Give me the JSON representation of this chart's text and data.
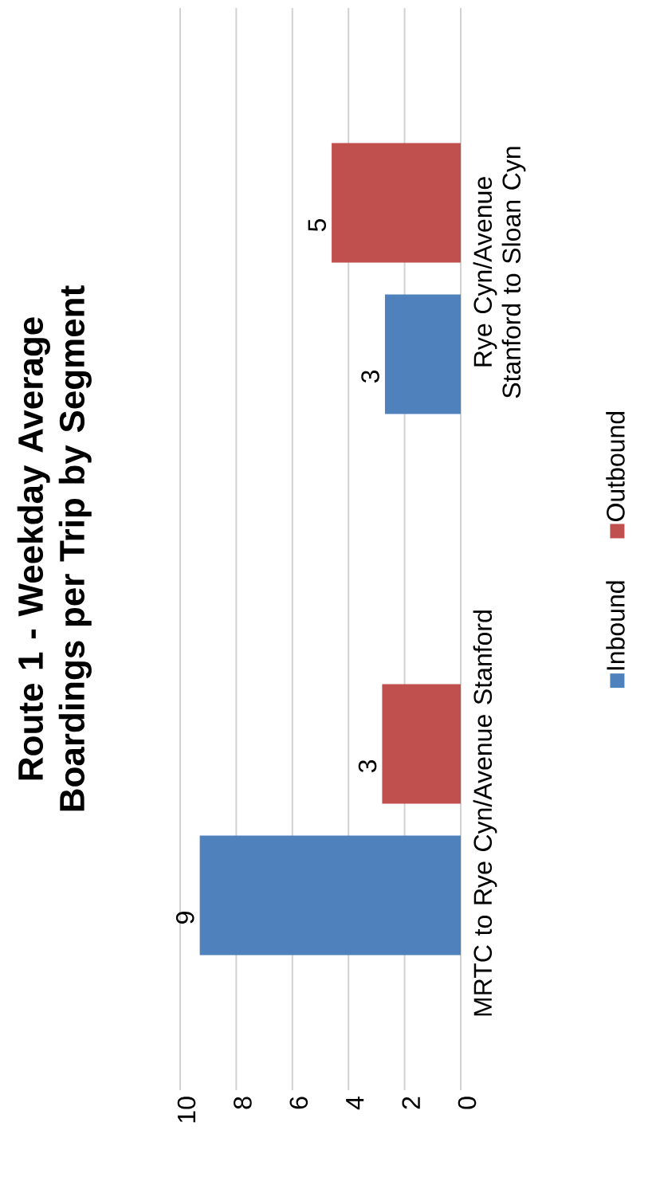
{
  "chart_data": {
    "type": "bar",
    "orientation": "horizontal",
    "title": "Route 1 - Weekday Average Boardings per Trip by Segment",
    "categories": [
      "Rye Cyn/Avenue Stanford to Sloan Cyn",
      "MRTC to Rye Cyn/Avenue Stanford"
    ],
    "series": [
      {
        "name": "Inbound",
        "color": "#4f81bd",
        "values": [
          2.7,
          9.3
        ],
        "value_labels": [
          "3",
          "9"
        ]
      },
      {
        "name": "Outbound",
        "color": "#c0504d",
        "values": [
          4.6,
          2.8
        ],
        "value_labels": [
          "5",
          "3"
        ]
      }
    ],
    "xlim": [
      10,
      0
    ],
    "xticks": [
      0,
      2,
      4,
      6,
      8,
      10
    ],
    "grid": "x",
    "legend": "right"
  }
}
